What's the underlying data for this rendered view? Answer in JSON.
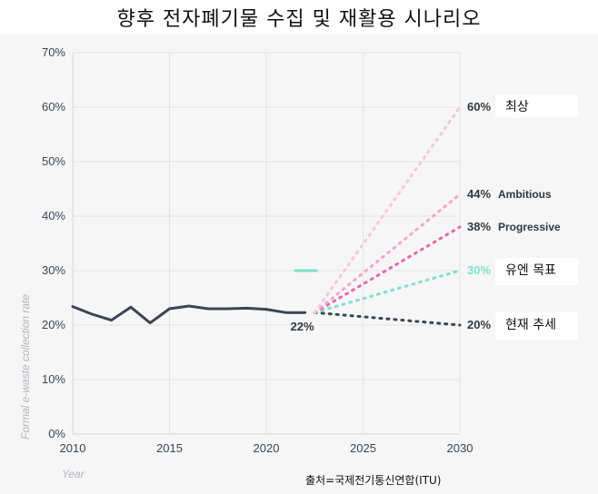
{
  "title": "향후 전자폐기물 수집 및 재활용 시나리오",
  "source": "출처=국제전기통신연합(ITU)",
  "chart_data": {
    "type": "line",
    "xlabel": "Year",
    "ylabel": "Formal e-waste collection rate",
    "xlim": [
      2010,
      2030
    ],
    "ylim": [
      0,
      70
    ],
    "x_ticks": [
      "2010",
      "2015",
      "2020",
      "2025",
      "2030"
    ],
    "y_ticks": [
      "0%",
      "10%",
      "20%",
      "30%",
      "40%",
      "50%",
      "60%",
      "70%"
    ],
    "grid": true,
    "historical": {
      "x": [
        2010,
        2011,
        2012,
        2013,
        2014,
        2015,
        2016,
        2017,
        2018,
        2019,
        2020,
        2021,
        2022
      ],
      "y": [
        23.4,
        22.0,
        20.9,
        23.3,
        20.4,
        23.0,
        23.5,
        23.0,
        23.0,
        23.1,
        22.9,
        22.3,
        22.3
      ],
      "color": "#3b4652",
      "end_label": "22%"
    },
    "un_target": {
      "y": 30,
      "x_range": [
        2021.5,
        2022.6
      ],
      "color": "#7fe0cc"
    },
    "scenarios": [
      {
        "value_label": "60%",
        "end": 60,
        "name_en": "",
        "name_ko": "최상",
        "color": "#f7c8de",
        "label_color": "#2f3a45"
      },
      {
        "value_label": "44%",
        "end": 44,
        "name_en": "Ambitious",
        "name_ko": "",
        "color": "#f2a8cc",
        "label_color": "#2f3a45"
      },
      {
        "value_label": "38%",
        "end": 38,
        "name_en": "Progressive",
        "name_ko": "",
        "color": "#df6ab0",
        "label_color": "#2f3a45"
      },
      {
        "value_label": "30%",
        "end": 30,
        "name_en": "",
        "name_ko": "유엔 목표",
        "color": "#7fe0cc",
        "label_color": "#7fe0cc"
      },
      {
        "value_label": "20%",
        "end": 20,
        "name_en": "",
        "name_ko": "현재 추세",
        "color": "#3b4652",
        "label_color": "#2f3a45"
      }
    ],
    "projection_start": {
      "x": 2022.5,
      "y": 22.3
    }
  }
}
